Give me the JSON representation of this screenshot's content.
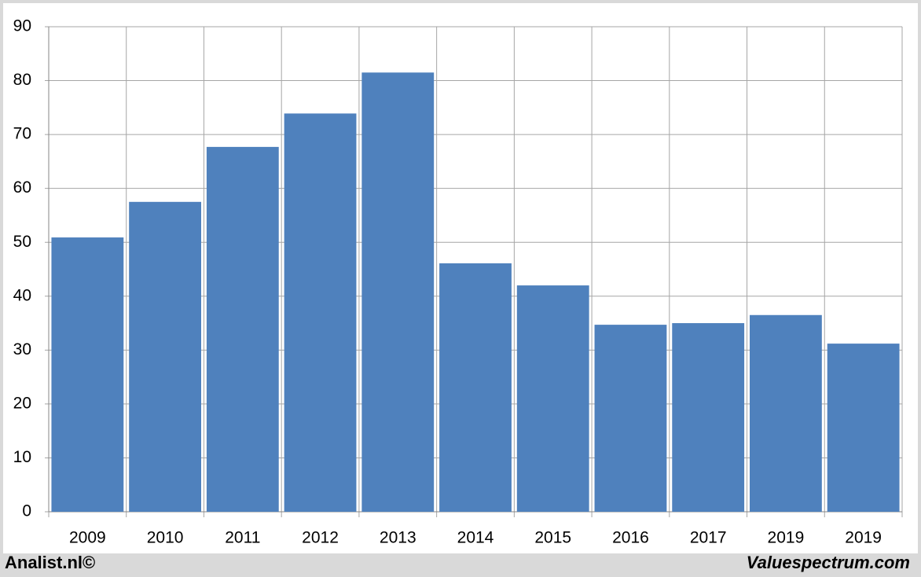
{
  "chart_data": {
    "type": "bar",
    "categories": [
      "2009",
      "2010",
      "2011",
      "2012",
      "2013",
      "2014",
      "2015",
      "2016",
      "2017",
      "2019",
      "2019"
    ],
    "values": [
      50.9,
      57.5,
      67.7,
      73.9,
      81.5,
      46.1,
      42.0,
      34.7,
      35.0,
      36.5,
      31.2
    ],
    "color": "#4f81bd",
    "ylim": [
      0,
      90
    ],
    "yticks": [
      0,
      10,
      20,
      30,
      40,
      50,
      60,
      70,
      80,
      90
    ],
    "grid": true,
    "annotations": [
      "Analist.nl©",
      "Valuespectrum.com"
    ]
  }
}
